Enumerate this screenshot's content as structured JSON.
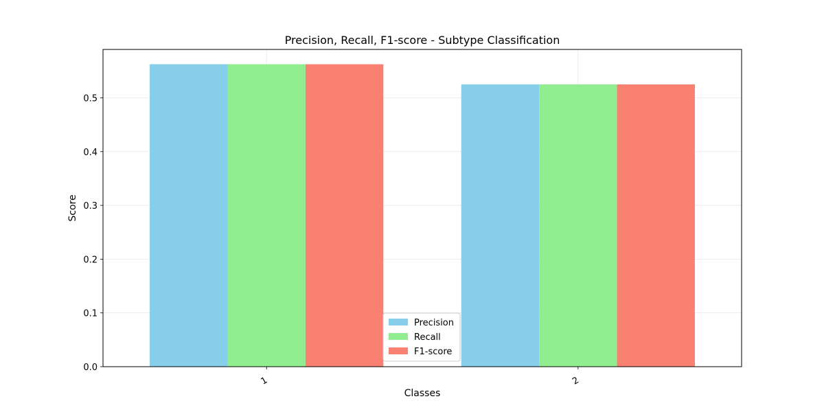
{
  "chart_data": {
    "type": "bar",
    "title": "Precision, Recall, F1-score - Subtype Classification",
    "xlabel": "Classes",
    "ylabel": "Score",
    "categories": [
      "1",
      "2"
    ],
    "series": [
      {
        "name": "Precision",
        "values": [
          0.5625,
          0.525
        ],
        "color": "#87CEEB"
      },
      {
        "name": "Recall",
        "values": [
          0.5625,
          0.525
        ],
        "color": "#90EE90"
      },
      {
        "name": "F1-score",
        "values": [
          0.5625,
          0.525
        ],
        "color": "#FA8072"
      }
    ],
    "ylim": [
      0,
      0.59
    ],
    "yticks": [
      0.0,
      0.1,
      0.2,
      0.3,
      0.4,
      0.5
    ],
    "ytick_labels": [
      "0.0",
      "0.1",
      "0.2",
      "0.3",
      "0.4",
      "0.5"
    ],
    "grid": true,
    "legend_position": "lower-center",
    "xtick_rotation": "angled"
  }
}
